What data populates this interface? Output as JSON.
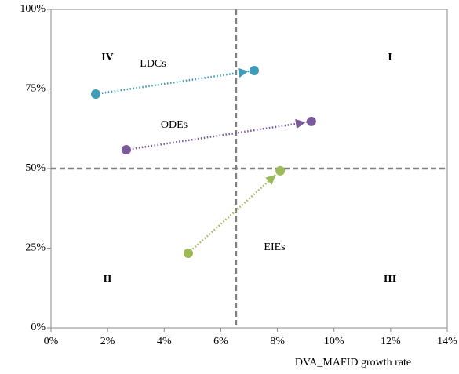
{
  "chart_data": {
    "type": "arrow-scatter",
    "xlabel": "DVA_MAFID growth rate",
    "xlim": [
      0,
      14
    ],
    "xticks": [
      {
        "value": 0,
        "label": "0%"
      },
      {
        "value": 2,
        "label": "2%"
      },
      {
        "value": 4,
        "label": "4%"
      },
      {
        "value": 6,
        "label": "6%"
      },
      {
        "value": 8,
        "label": "8%"
      },
      {
        "value": 10,
        "label": "10%"
      },
      {
        "value": 12,
        "label": "12%"
      },
      {
        "value": 14,
        "label": "14%"
      }
    ],
    "ylim": [
      0,
      100
    ],
    "yticks": [
      {
        "value": 0,
        "label": "0%"
      },
      {
        "value": 25,
        "label": "25%"
      },
      {
        "value": 50,
        "label": "50%"
      },
      {
        "value": 75,
        "label": "75%"
      },
      {
        "value": 100,
        "label": "100%"
      }
    ],
    "vline": 6.54,
    "hline": 50,
    "quadrant_labels": [
      "I",
      "II",
      "III",
      "IV"
    ],
    "series": [
      {
        "name": "LDCs",
        "color": "#3f9bb8",
        "x": [
          1.58,
          7.18
        ],
        "values": [
          73.4,
          80.8
        ]
      },
      {
        "name": "ODEs",
        "color": "#7a5a9a",
        "x": [
          2.66,
          9.2
        ],
        "values": [
          55.9,
          64.8
        ]
      },
      {
        "name": "EIEs",
        "color": "#9bbb59",
        "x": [
          4.85,
          8.1
        ],
        "values": [
          23.4,
          49.3
        ]
      }
    ]
  }
}
